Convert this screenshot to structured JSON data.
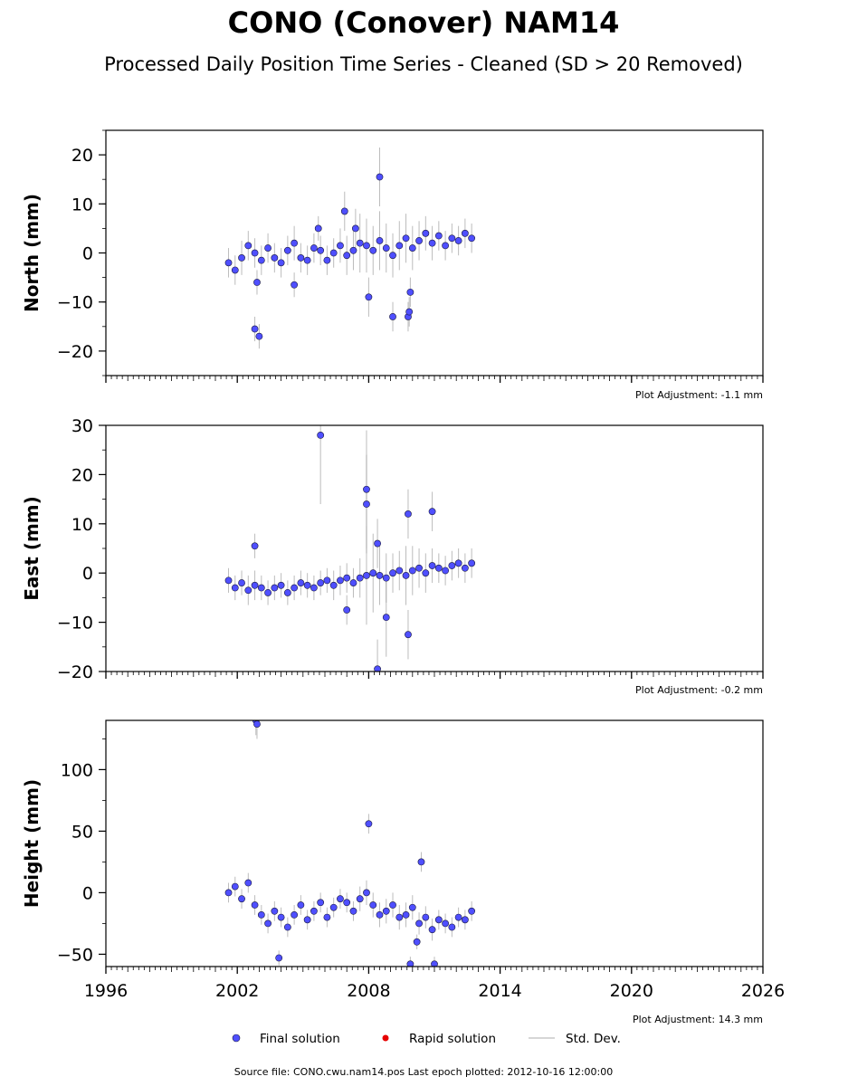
{
  "title": "CONO (Conover) NAM14",
  "subtitle": "Processed Daily Position Time Series - Cleaned (SD > 20 Removed)",
  "legend": {
    "final": "Final solution",
    "rapid": "Rapid solution",
    "std": "Std. Dev."
  },
  "footer": {
    "source": "Source file: CONO.cwu.nam14.pos  Last epoch plotted: 2012-10-16 12:00:00"
  },
  "colors": {
    "final": "#4f4fff",
    "final_edge": "#1a1a40",
    "rapid": "#e60000",
    "std": "#a0a0a0"
  },
  "chart_data": [
    {
      "type": "scatter",
      "ylabel": "North (mm)",
      "adjustment": "Plot Adjustment: -1.1 mm",
      "xlim": [
        1996,
        2026
      ],
      "ylim": [
        -25,
        25
      ],
      "xticks": [
        1996,
        2002,
        2008,
        2014,
        2020,
        2026
      ],
      "xticklabels": [],
      "yticks": [
        -20,
        -10,
        0,
        10,
        20
      ],
      "yticklabels": [
        "−20",
        "−10",
        "0",
        "10",
        "20"
      ],
      "series": [
        {
          "kind": "final",
          "x": [
            2001.6,
            2001.9,
            2002.2,
            2002.5,
            2002.8,
            2003.1,
            2003.4,
            2003.7,
            2004.0,
            2004.3,
            2004.6,
            2004.9,
            2005.2,
            2005.5,
            2005.8,
            2006.1,
            2006.4,
            2006.7,
            2007.0,
            2007.3,
            2007.6,
            2007.9,
            2008.2,
            2008.5,
            2008.8,
            2009.1,
            2009.4,
            2009.7,
            2010.0,
            2010.3,
            2010.6,
            2010.9,
            2011.2,
            2011.5,
            2011.8,
            2012.1,
            2012.4,
            2012.7,
            2002.8,
            2003.0,
            2007.4,
            2006.9,
            2008.0,
            2008.5,
            2009.1,
            2009.8,
            2009.9,
            2009.85,
            2002.9,
            2004.6,
            2005.7
          ],
          "y": [
            -2,
            -3.5,
            -1,
            1.5,
            0,
            -1.5,
            1,
            -1,
            -2,
            0.5,
            2,
            -1,
            -1.5,
            1,
            0.5,
            -1.5,
            0,
            1.5,
            -0.5,
            0.5,
            2,
            1.5,
            0.5,
            2.5,
            1,
            -0.5,
            1.5,
            3,
            1,
            2.5,
            4,
            2,
            3.5,
            1.5,
            3,
            2.5,
            4,
            3,
            -15.5,
            -17,
            5,
            8.5,
            -9,
            15.5,
            -13,
            -13,
            -8,
            -12,
            -6,
            -6.5,
            5
          ],
          "yerr": [
            3,
            3,
            3.5,
            3,
            3,
            3,
            3,
            3,
            3,
            3,
            3.5,
            3,
            3,
            3,
            3,
            3,
            3,
            3.5,
            4,
            4,
            6,
            5.5,
            5,
            6,
            5,
            4.5,
            5,
            5,
            4.5,
            4,
            3.5,
            3.5,
            3,
            3,
            3,
            3,
            3,
            3,
            2.5,
            2.5,
            4,
            4,
            4,
            6,
            3,
            3,
            3,
            3,
            2.5,
            2.5,
            2.5
          ]
        }
      ]
    },
    {
      "type": "scatter",
      "ylabel": "East (mm)",
      "adjustment": "Plot Adjustment: -0.2 mm",
      "xlim": [
        1996,
        2026
      ],
      "ylim": [
        -20,
        30
      ],
      "xticks": [
        1996,
        2002,
        2008,
        2014,
        2020,
        2026
      ],
      "xticklabels": [],
      "yticks": [
        -20,
        -10,
        0,
        10,
        20,
        30
      ],
      "yticklabels": [
        "−20",
        "−10",
        "0",
        "10",
        "20",
        "30"
      ],
      "series": [
        {
          "kind": "final",
          "x": [
            2001.6,
            2001.9,
            2002.2,
            2002.5,
            2002.8,
            2003.1,
            2003.4,
            2003.7,
            2004.0,
            2004.3,
            2004.6,
            2004.9,
            2005.2,
            2005.5,
            2005.8,
            2006.1,
            2006.4,
            2006.7,
            2007.0,
            2007.3,
            2007.6,
            2007.9,
            2008.2,
            2008.5,
            2008.8,
            2009.1,
            2009.4,
            2009.7,
            2010.0,
            2010.3,
            2010.6,
            2010.9,
            2011.2,
            2011.5,
            2011.8,
            2012.1,
            2012.4,
            2012.7,
            2005.8,
            2007.9,
            2007.9,
            2008.8,
            2008.4,
            2010.9,
            2009.8,
            2009.8,
            2008.4,
            2002.8,
            2007.0
          ],
          "y": [
            -1.5,
            -3,
            -2,
            -3.5,
            -2.5,
            -3,
            -4,
            -3,
            -2.5,
            -4,
            -3,
            -2,
            -2.5,
            -3,
            -2,
            -1.5,
            -2.5,
            -1.5,
            -1,
            -2,
            -1,
            -0.5,
            0,
            -0.5,
            -1,
            0,
            0.5,
            -0.5,
            0.5,
            1,
            0,
            1.5,
            1,
            0.5,
            1.5,
            2,
            1,
            2,
            28,
            17,
            14,
            -9,
            -19.5,
            12.5,
            12,
            -12.5,
            6,
            5.5,
            -7.5
          ],
          "yerr": [
            2.5,
            2.5,
            2.5,
            3,
            3,
            2.5,
            2.5,
            2.5,
            2.5,
            2.5,
            2.5,
            2.5,
            2.5,
            2.5,
            2.5,
            2.5,
            3,
            3,
            3,
            3,
            4,
            10,
            8,
            6,
            5,
            4,
            4,
            6,
            5,
            4,
            4,
            3.5,
            3,
            3,
            3,
            3,
            3,
            3,
            14,
            12,
            10,
            8,
            6,
            4,
            5,
            5,
            5,
            2.5,
            3
          ]
        }
      ]
    },
    {
      "type": "scatter",
      "ylabel": "Height (mm)",
      "adjustment": "Plot Adjustment: 14.3 mm",
      "xlim": [
        1996,
        2026
      ],
      "ylim": [
        -60,
        140
      ],
      "xticks": [
        1996,
        2002,
        2008,
        2014,
        2020,
        2026
      ],
      "xticklabels": [
        "1996",
        "2002",
        "2008",
        "2014",
        "2020",
        "2026"
      ],
      "yticks": [
        -50,
        0,
        50,
        100
      ],
      "yticklabels": [
        "−50",
        "0",
        "50",
        "100"
      ],
      "series": [
        {
          "kind": "final",
          "x": [
            2001.6,
            2001.9,
            2002.2,
            2002.5,
            2002.8,
            2003.1,
            2003.4,
            2003.7,
            2004.0,
            2004.3,
            2004.6,
            2004.9,
            2005.2,
            2005.5,
            2005.8,
            2006.1,
            2006.4,
            2006.7,
            2007.0,
            2007.3,
            2007.6,
            2007.9,
            2008.2,
            2008.5,
            2008.8,
            2009.1,
            2009.4,
            2009.7,
            2010.0,
            2010.3,
            2010.6,
            2010.9,
            2011.2,
            2011.5,
            2011.8,
            2012.1,
            2012.4,
            2012.7,
            2002.85,
            2002.9,
            2008.0,
            2010.4,
            2003.9,
            2009.9,
            2010.2,
            2011.0
          ],
          "y": [
            0,
            5,
            -5,
            8,
            -10,
            -18,
            -25,
            -15,
            -20,
            -28,
            -18,
            -10,
            -22,
            -15,
            -8,
            -20,
            -12,
            -5,
            -8,
            -15,
            -5,
            0,
            -10,
            -18,
            -15,
            -10,
            -20,
            -18,
            -12,
            -25,
            -20,
            -30,
            -22,
            -25,
            -28,
            -20,
            -22,
            -15,
            140,
            137,
            56,
            25,
            -53,
            -58,
            -40,
            -58
          ],
          "yerr": [
            8,
            8,
            8,
            8,
            8,
            8,
            8,
            8,
            8,
            8,
            8,
            8,
            8,
            8,
            8,
            8,
            8,
            8,
            8,
            8,
            10,
            10,
            10,
            10,
            10,
            10,
            10,
            10,
            10,
            9,
            9,
            9,
            8,
            8,
            8,
            8,
            8,
            8,
            12,
            12,
            8,
            8,
            6,
            6,
            6,
            6
          ]
        }
      ]
    }
  ]
}
